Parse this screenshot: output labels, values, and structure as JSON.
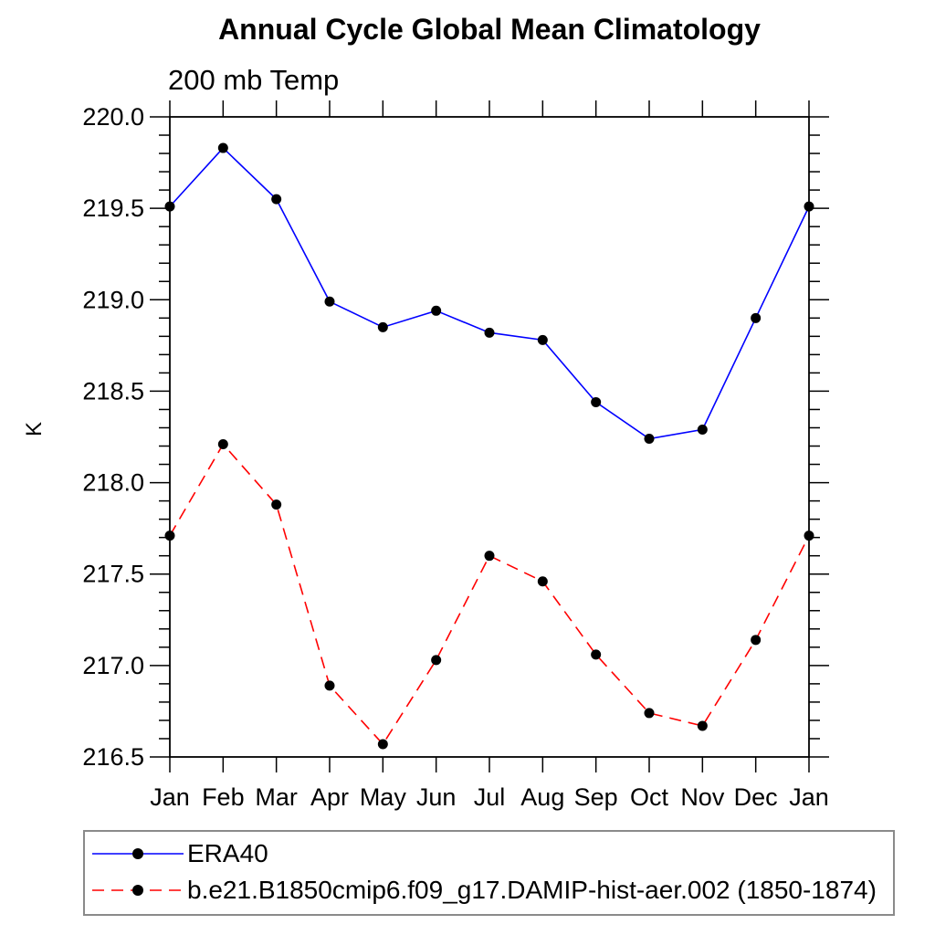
{
  "page": {
    "background": "#ffffff"
  },
  "chart_data": {
    "type": "line",
    "title": "Annual Cycle Global Mean Climatology",
    "subtitle": "200 mb Temp",
    "ylabel": "K",
    "xlabel": "",
    "categories": [
      "Jan",
      "Feb",
      "Mar",
      "Apr",
      "May",
      "Jun",
      "Jul",
      "Aug",
      "Sep",
      "Oct",
      "Nov",
      "Dec",
      "Jan"
    ],
    "ylim": [
      216.5,
      220.0
    ],
    "ytick_major": 0.5,
    "ytick_minor": 0.1,
    "grid": false,
    "legend_position": "bottom-left",
    "axis_color": "#000000",
    "marker": "filled-circle",
    "marker_color": "#000000",
    "series": [
      {
        "name": "ERA40",
        "color": "#0000ff",
        "line_style": "solid",
        "values": [
          219.51,
          219.83,
          219.55,
          218.99,
          218.85,
          218.94,
          218.82,
          218.78,
          218.44,
          218.24,
          218.29,
          218.9,
          219.51
        ]
      },
      {
        "name": "b.e21.B1850cmip6.f09_g17.DAMIP-hist-aer.002 (1850-1874)",
        "color": "#ff0000",
        "line_style": "dashed",
        "values": [
          217.71,
          218.21,
          217.88,
          216.89,
          216.57,
          217.03,
          217.6,
          217.46,
          217.06,
          216.74,
          216.67,
          217.14,
          217.71
        ]
      }
    ]
  }
}
